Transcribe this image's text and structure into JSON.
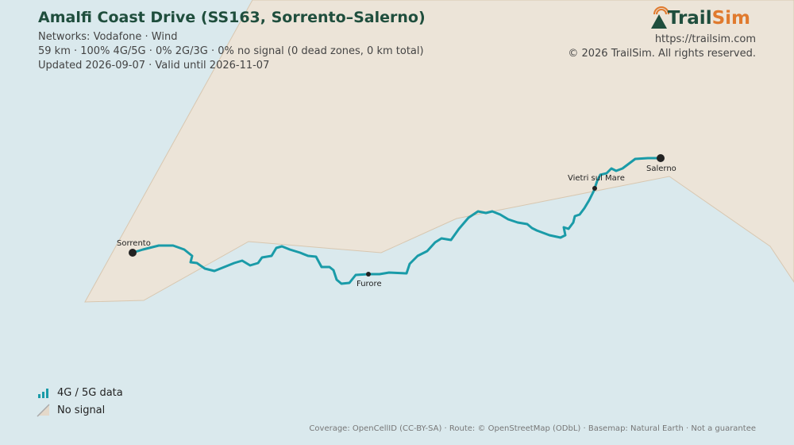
{
  "header": {
    "title": "Amalfi Coast Drive (SS163, Sorrento–Salerno)",
    "networks": "Networks: Vodafone · Wind",
    "stats": "59 km · 100% 4G/5G · 0% 2G/3G · 0% no signal (0 dead zones, 0 km total)",
    "updated": "Updated 2026-09-07 · Valid until 2026-11-07"
  },
  "brand": {
    "name_first": "Trail",
    "name_second": "Sim",
    "url": "https://trailsim.com",
    "copyright": "© 2026 TrailSim. All rights reserved."
  },
  "places": [
    {
      "label": "Sorrento"
    },
    {
      "label": "Furore"
    },
    {
      "label": "Vietri sul Mare"
    },
    {
      "label": "Salerno"
    }
  ],
  "legend": [
    {
      "label": "4G / 5G data"
    },
    {
      "label": "No signal"
    }
  ],
  "footer": "Coverage: OpenCellID (CC-BY-SA) · Route: © OpenStreetMap (ODbL) · Basemap: Natural Earth · Not a guarantee"
}
